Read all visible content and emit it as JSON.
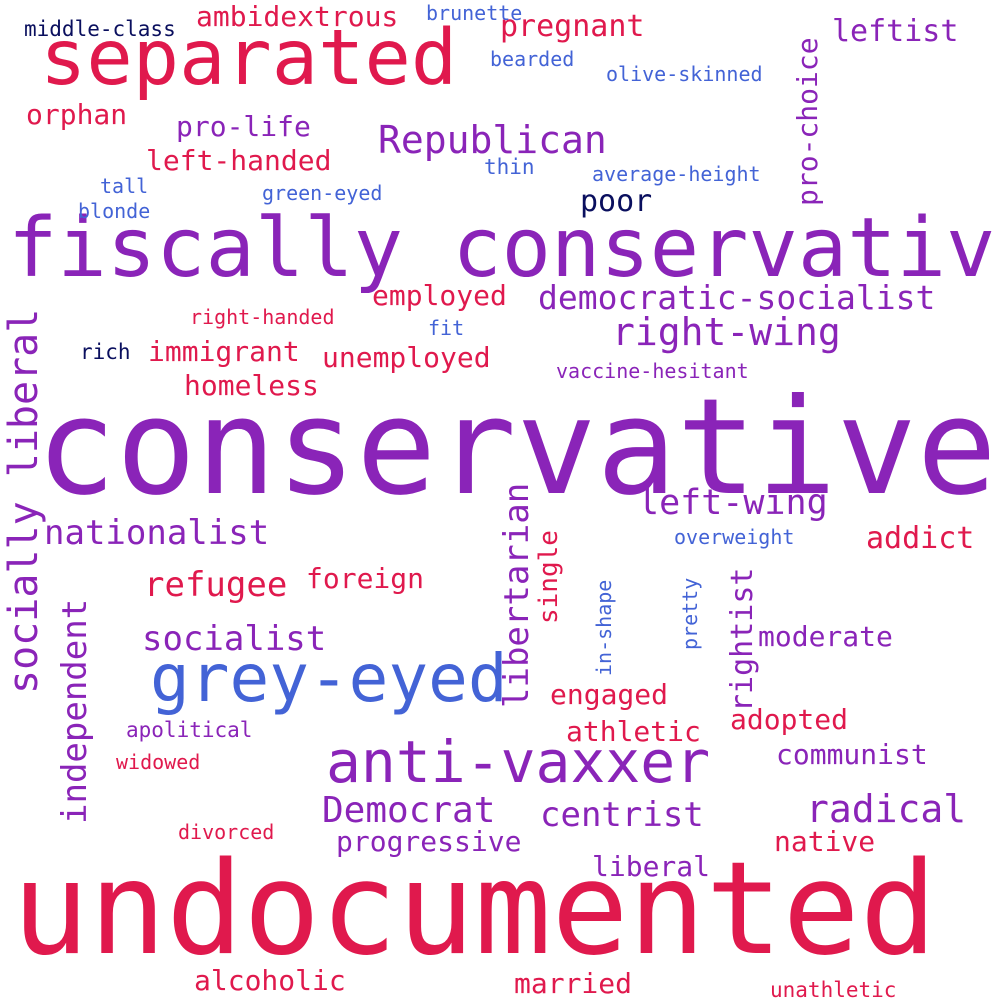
{
  "words": {
    "undocumented": "undocumented",
    "conservative": "conservative",
    "fiscally_conservative": "fiscally conservative",
    "separated": "separated",
    "grey_eyed": "grey-eyed",
    "anti_vaxxer": "anti-vaxxer",
    "socially_liberal": "socially liberal",
    "republican": "Republican",
    "right_wing": "right-wing",
    "democratic_socialist": "democratic-socialist",
    "left_wing": "left-wing",
    "democrat": "Democrat",
    "radical": "radical",
    "nationalist": "nationalist",
    "independent": "independent",
    "libertarian": "libertarian",
    "refugee": "refugee",
    "socialist": "socialist",
    "centrist": "centrist",
    "rightist": "rightist",
    "pregnant": "pregnant",
    "ambidextrous": "ambidextrous",
    "leftist": "leftist",
    "pro_choice": "pro-choice",
    "orphan": "orphan",
    "pro_life": "pro-life",
    "left_handed": "left-handed",
    "poor": "poor",
    "employed": "employed",
    "immigrant": "immigrant",
    "unemployed": "unemployed",
    "homeless": "homeless",
    "foreign": "foreign",
    "addict": "addict",
    "moderate": "moderate",
    "single": "single",
    "engaged": "engaged",
    "athletic": "athletic",
    "adopted": "adopted",
    "communist": "communist",
    "progressive": "progressive",
    "native": "native",
    "liberal": "liberal",
    "alcoholic": "alcoholic",
    "married": "married",
    "unathletic": "unathletic",
    "divorced": "divorced",
    "widowed": "widowed",
    "apolitical": "apolitical",
    "middle_class": "middle-class",
    "brunette": "brunette",
    "bearded": "bearded",
    "olive_skinned": "olive-skinned",
    "thin": "thin",
    "average_height": "average-height",
    "tall": "tall",
    "green_eyed": "green-eyed",
    "blonde": "blonde",
    "right_handed": "right-handed",
    "fit": "fit",
    "rich": "rich",
    "vaccine_hesitant": "vaccine-hesitant",
    "overweight": "overweight",
    "in_shape": "in-shape",
    "pretty": "pretty"
  },
  "colors": {
    "purple": "#8a24b8",
    "red": "#e0194d",
    "blue": "#4363d6",
    "navy": "#0a0f5e",
    "background": "#ffffff"
  }
}
